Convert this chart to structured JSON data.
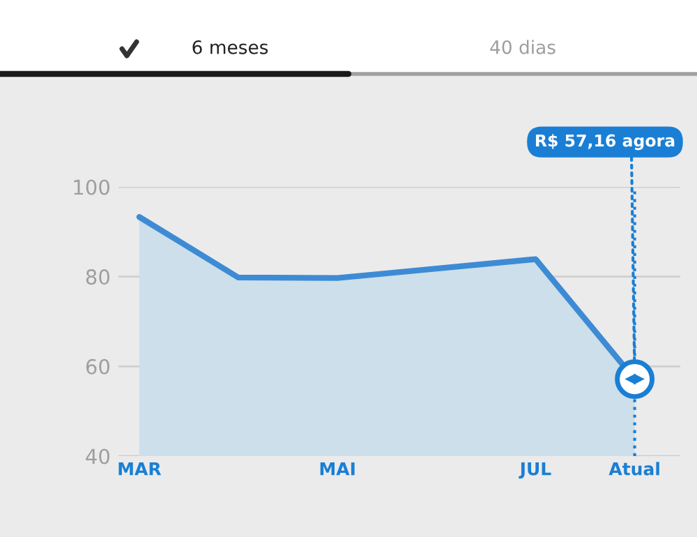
{
  "chart_data": {
    "type": "area",
    "categories": [
      "MAR",
      null,
      "MAI",
      null,
      "JUL",
      "Atual"
    ],
    "series": [
      {
        "color": "#3d8bd5",
        "values": [
          93.3,
          79.8,
          79.7,
          81.8,
          83.9,
          57.16
        ]
      }
    ],
    "ref_lines": [
      {
        "axis": "x",
        "value": "Atual",
        "color": "#1a7fd4",
        "line_style": "dotted"
      }
    ],
    "ylim": [
      40,
      100
    ],
    "yticks": [
      40,
      60,
      80,
      100
    ],
    "grid": "y",
    "legend": false,
    "annotations": [
      {
        "text": "R$ 57,16 agora",
        "x": "Atual",
        "y": 57.16
      },
      "6 meses",
      "40 dias"
    ]
  }
}
